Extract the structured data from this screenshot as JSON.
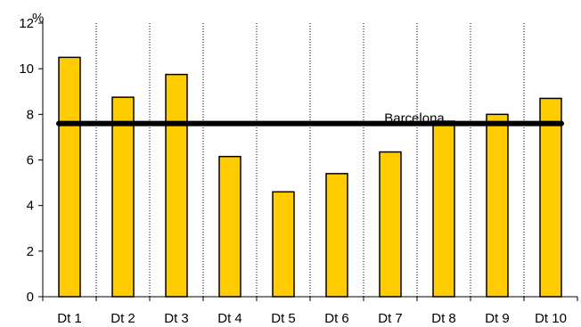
{
  "chart_data": {
    "type": "bar",
    "title": "",
    "xlabel": "",
    "ylabel": "",
    "y_unit": "%",
    "ylim": [
      0,
      12
    ],
    "yticks": [
      0,
      2,
      4,
      6,
      8,
      10,
      12
    ],
    "grid": "vertical dashed",
    "legend": "none",
    "categories": [
      "Dt 1",
      "Dt 2",
      "Dt 3",
      "Dt 4",
      "Dt 5",
      "Dt 6",
      "Dt 7",
      "Dt 8",
      "Dt 9",
      "Dt 10"
    ],
    "values": [
      10.5,
      8.75,
      9.75,
      6.15,
      4.6,
      5.4,
      6.35,
      7.7,
      8.0,
      8.7
    ],
    "bar_color": "#FFCC00",
    "bar_edge_color": "#000000",
    "reference_line": {
      "label": "Barcelona",
      "value": 7.6,
      "color": "#000000"
    }
  }
}
